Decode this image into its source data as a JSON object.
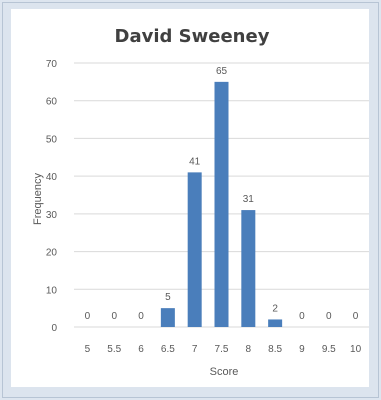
{
  "chart_data": {
    "type": "bar",
    "title": "David Sweeney",
    "xlabel": "Score",
    "ylabel": "Frequency",
    "ylim": [
      0,
      70
    ],
    "yticks": [
      0,
      10,
      20,
      30,
      40,
      50,
      60,
      70
    ],
    "categories": [
      "5",
      "5.5",
      "6",
      "6.5",
      "7",
      "7.5",
      "8",
      "8.5",
      "9",
      "9.5",
      "10"
    ],
    "values": [
      0,
      0,
      0,
      5,
      41,
      65,
      31,
      2,
      0,
      0,
      0
    ],
    "grid": true,
    "legend": "none",
    "colors": {
      "bar": "#4a7ebb",
      "grid": "#d9d9d9",
      "text": "#595959",
      "title": "#404040"
    }
  }
}
